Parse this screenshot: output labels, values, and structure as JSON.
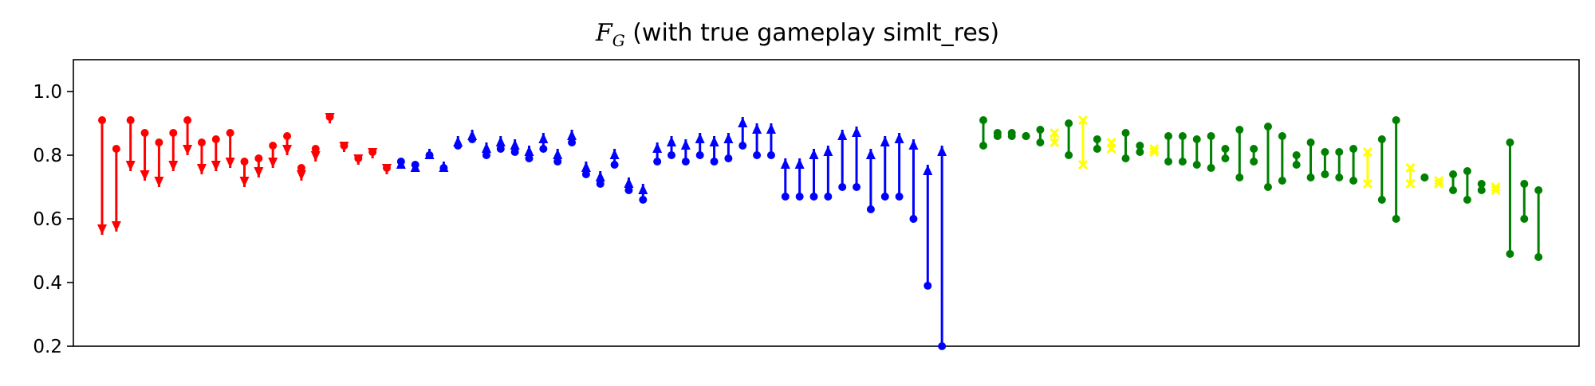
{
  "chart_data": {
    "type": "scatter",
    "title_prefix": "F",
    "title_sub": "G",
    "title_rest": " (with true gameplay simlt_res)",
    "ylim": [
      0.2,
      1.1
    ],
    "yticks": [
      "0.2",
      "0.4",
      "0.6",
      "0.8",
      "1.0"
    ],
    "grid": false,
    "colors": {
      "red": "#ff0000",
      "blue": "#0000ff",
      "green": "#008000",
      "yellow": "#ffff00"
    },
    "groups": [
      {
        "color": "red",
        "kind": "down",
        "pairs": [
          [
            0.91,
            0.55
          ],
          [
            0.82,
            0.56
          ],
          [
            0.91,
            0.75
          ],
          [
            0.87,
            0.72
          ],
          [
            0.84,
            0.7
          ],
          [
            0.87,
            0.75
          ],
          [
            0.91,
            0.8
          ],
          [
            0.84,
            0.74
          ],
          [
            0.85,
            0.75
          ],
          [
            0.87,
            0.76
          ],
          [
            0.78,
            0.7
          ],
          [
            0.79,
            0.73
          ],
          [
            0.83,
            0.76
          ],
          [
            0.86,
            0.8
          ],
          [
            0.76,
            0.72
          ],
          [
            0.82,
            0.78
          ],
          [
            0.92,
            0.9
          ],
          [
            0.83,
            0.81
          ],
          [
            0.79,
            0.77
          ],
          [
            0.81,
            0.79
          ],
          [
            0.76,
            0.74
          ]
        ]
      },
      {
        "color": "blue",
        "kind": "up",
        "pairs": [
          [
            0.78,
            0.79
          ],
          [
            0.77,
            0.78
          ],
          [
            0.8,
            0.82
          ],
          [
            0.76,
            0.78
          ],
          [
            0.83,
            0.86
          ],
          [
            0.85,
            0.88
          ],
          [
            0.8,
            0.84
          ],
          [
            0.82,
            0.86
          ],
          [
            0.81,
            0.85
          ],
          [
            0.79,
            0.83
          ],
          [
            0.82,
            0.87
          ],
          [
            0.78,
            0.82
          ],
          [
            0.84,
            0.88
          ],
          [
            0.74,
            0.78
          ],
          [
            0.71,
            0.75
          ],
          [
            0.77,
            0.82
          ],
          [
            0.69,
            0.73
          ],
          [
            0.66,
            0.71
          ],
          [
            0.78,
            0.84
          ],
          [
            0.8,
            0.86
          ],
          [
            0.78,
            0.85
          ],
          [
            0.8,
            0.87
          ],
          [
            0.78,
            0.86
          ],
          [
            0.79,
            0.87
          ],
          [
            0.83,
            0.92
          ],
          [
            0.8,
            0.9
          ],
          [
            0.8,
            0.9
          ],
          [
            0.67,
            0.79
          ],
          [
            0.67,
            0.79
          ],
          [
            0.67,
            0.82
          ],
          [
            0.67,
            0.83
          ],
          [
            0.7,
            0.88
          ],
          [
            0.7,
            0.89
          ],
          [
            0.63,
            0.82
          ],
          [
            0.67,
            0.86
          ],
          [
            0.67,
            0.87
          ],
          [
            0.6,
            0.85
          ],
          [
            0.39,
            0.77
          ],
          [
            0.2,
            0.83
          ]
        ]
      },
      {
        "color": "gap",
        "kind": "none",
        "pairs": []
      },
      {
        "color": "mixed",
        "kind": "flat",
        "pairs": [
          [
            "green",
            0.91,
            0.83
          ],
          [
            "green",
            0.87,
            0.86
          ],
          [
            "green",
            0.87,
            0.86
          ],
          [
            "green",
            0.86,
            0.86
          ],
          [
            "green",
            0.88,
            0.84
          ],
          [
            "yellow",
            0.87,
            0.84
          ],
          [
            "green",
            0.9,
            0.8
          ],
          [
            "yellow",
            0.91,
            0.77
          ],
          [
            "green",
            0.85,
            0.82
          ],
          [
            "yellow",
            0.84,
            0.82
          ],
          [
            "green",
            0.87,
            0.79
          ],
          [
            "green",
            0.83,
            0.81
          ],
          [
            "yellow",
            0.82,
            0.81
          ],
          [
            "green",
            0.86,
            0.78
          ],
          [
            "green",
            0.86,
            0.78
          ],
          [
            "green",
            0.85,
            0.77
          ],
          [
            "green",
            0.86,
            0.76
          ],
          [
            "green",
            0.82,
            0.79
          ],
          [
            "green",
            0.88,
            0.73
          ],
          [
            "green",
            0.82,
            0.78
          ],
          [
            "green",
            0.89,
            0.7
          ],
          [
            "green",
            0.86,
            0.72
          ],
          [
            "green",
            0.8,
            0.77
          ],
          [
            "green",
            0.84,
            0.73
          ],
          [
            "green",
            0.81,
            0.74
          ],
          [
            "green",
            0.81,
            0.73
          ],
          [
            "green",
            0.82,
            0.72
          ],
          [
            "yellow",
            0.81,
            0.71
          ],
          [
            "green",
            0.85,
            0.66
          ],
          [
            "green",
            0.91,
            0.6
          ],
          [
            "yellow",
            0.76,
            0.71
          ],
          [
            "green",
            0.73,
            0.73
          ],
          [
            "yellow",
            0.72,
            0.71
          ],
          [
            "green",
            0.74,
            0.69
          ],
          [
            "green",
            0.75,
            0.66
          ],
          [
            "green",
            0.71,
            0.69
          ],
          [
            "yellow",
            0.7,
            0.69
          ],
          [
            "green",
            0.84,
            0.49
          ],
          [
            "green",
            0.71,
            0.6
          ],
          [
            "green",
            0.69,
            0.48
          ]
        ]
      }
    ]
  }
}
